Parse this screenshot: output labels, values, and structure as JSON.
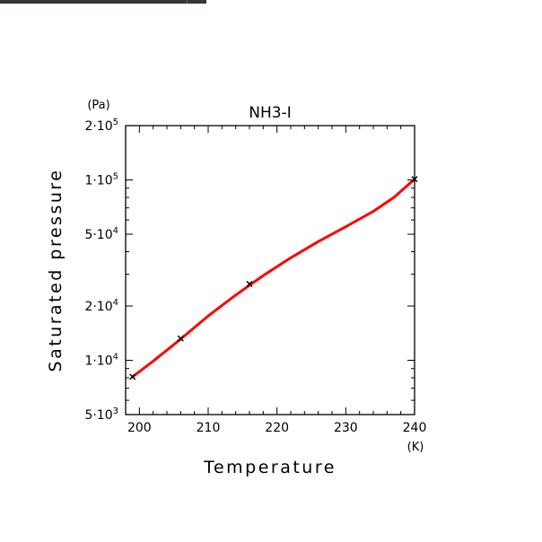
{
  "chart_data": {
    "type": "line",
    "title": "NH3-I",
    "xlabel": "Temperature",
    "ylabel": "Saturated pressure",
    "x_unit": "(K)",
    "y_unit": "(Pa)",
    "xlim": [
      198,
      240
    ],
    "ylim": [
      5000,
      200000
    ],
    "y_scale": "log",
    "x_ticks": [
      200,
      210,
      220,
      230,
      240
    ],
    "x_tick_labels": [
      "200",
      "210",
      "220",
      "230",
      "240"
    ],
    "y_ticks": [
      {
        "value": 200000,
        "mantissa": "2",
        "exp": "5"
      },
      {
        "value": 100000,
        "mantissa": "1",
        "exp": "5"
      },
      {
        "value": 50000,
        "mantissa": "5",
        "exp": "4"
      },
      {
        "value": 20000,
        "mantissa": "2",
        "exp": "4"
      },
      {
        "value": 10000,
        "mantissa": "1",
        "exp": "4"
      },
      {
        "value": 5000,
        "mantissa": "5",
        "exp": "3"
      }
    ],
    "curve": {
      "color": "#ff0000",
      "x": [
        199,
        202,
        206,
        210,
        214,
        218,
        222,
        226,
        230,
        234,
        237,
        240
      ],
      "y": [
        8100,
        9900,
        13100,
        17600,
        23000,
        29500,
        37000,
        45500,
        55000,
        67000,
        80000,
        101000
      ]
    },
    "markers": {
      "color": "#000000",
      "x": [
        199,
        206,
        216,
        240
      ],
      "y": [
        8100,
        13200,
        26500,
        101000
      ]
    }
  }
}
